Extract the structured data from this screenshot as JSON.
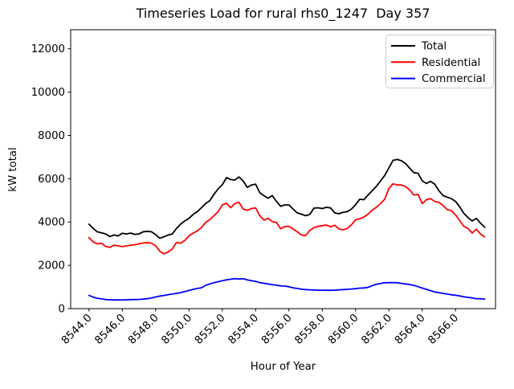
{
  "title": "Timeseries Load for rural rhs0_1247  Day 357",
  "chart_data": {
    "type": "line",
    "title": "Timeseries Load for rural rhs0_1247  Day 357",
    "xlabel": "Hour of Year",
    "ylabel": "kW total",
    "background": "#ffffff",
    "grid": false,
    "legend_position": "upper right",
    "legend": [
      "Total",
      "Residential",
      "Commercial"
    ],
    "xlim": [
      8542.9,
      8568.4
    ],
    "ylim": [
      0,
      12880
    ],
    "x_ticks": [
      8544,
      8546,
      8548,
      8550,
      8552,
      8554,
      8556,
      8558,
      8560,
      8562,
      8564,
      8566
    ],
    "x_tick_labels": [
      "8544.0",
      "8546.0",
      "8548.0",
      "8550.0",
      "8552.0",
      "8554.0",
      "8556.0",
      "8558.0",
      "8560.0",
      "8562.0",
      "8564.0",
      "8566.0"
    ],
    "y_ticks": [
      0,
      2000,
      4000,
      6000,
      8000,
      10000,
      12000
    ],
    "y_tick_labels": [
      "0",
      "2000",
      "4000",
      "6000",
      "8000",
      "10000",
      "12000"
    ],
    "x_start": 8544.0,
    "x_step": 0.25,
    "series": [
      {
        "name": "Total",
        "color": "#000000",
        "values": [
          3900,
          3700,
          3550,
          3500,
          3450,
          3330,
          3400,
          3360,
          3480,
          3450,
          3490,
          3430,
          3450,
          3550,
          3570,
          3550,
          3420,
          3250,
          3320,
          3400,
          3450,
          3700,
          3900,
          4050,
          4170,
          4350,
          4480,
          4660,
          4850,
          4980,
          5280,
          5530,
          5720,
          6050,
          5960,
          5940,
          6080,
          5900,
          5600,
          5710,
          5750,
          5350,
          5220,
          5100,
          5220,
          4950,
          4730,
          4790,
          4790,
          4600,
          4420,
          4360,
          4290,
          4350,
          4640,
          4660,
          4620,
          4680,
          4650,
          4420,
          4380,
          4450,
          4480,
          4600,
          4800,
          5050,
          5030,
          5250,
          5450,
          5650,
          5900,
          6150,
          6500,
          6850,
          6890,
          6830,
          6700,
          6480,
          6280,
          6250,
          5900,
          5780,
          5880,
          5750,
          5450,
          5220,
          5150,
          5080,
          4950,
          4700,
          4400,
          4200,
          4050,
          4170,
          3950,
          3760
        ]
      },
      {
        "name": "Residential",
        "color": "#ff0000",
        "values": [
          3280,
          3080,
          2990,
          3020,
          2870,
          2830,
          2930,
          2900,
          2860,
          2900,
          2930,
          2950,
          2990,
          3030,
          3050,
          3020,
          2900,
          2650,
          2530,
          2620,
          2750,
          3060,
          3020,
          3150,
          3360,
          3490,
          3590,
          3740,
          3980,
          4110,
          4290,
          4480,
          4790,
          4870,
          4660,
          4850,
          4910,
          4600,
          4540,
          4620,
          4650,
          4290,
          4090,
          4170,
          4020,
          3980,
          3690,
          3790,
          3800,
          3680,
          3550,
          3400,
          3370,
          3610,
          3740,
          3800,
          3830,
          3860,
          3780,
          3850,
          3680,
          3640,
          3700,
          3870,
          4100,
          4150,
          4230,
          4360,
          4550,
          4680,
          4860,
          5050,
          5550,
          5770,
          5710,
          5710,
          5640,
          5480,
          5250,
          5280,
          4850,
          5030,
          5080,
          4950,
          4910,
          4760,
          4580,
          4520,
          4330,
          4070,
          3800,
          3700,
          3490,
          3670,
          3440,
          3310
        ]
      },
      {
        "name": "Commercial",
        "color": "#0000ff",
        "values": [
          610,
          530,
          480,
          450,
          420,
          410,
          400,
          400,
          405,
          410,
          415,
          420,
          425,
          440,
          455,
          490,
          540,
          580,
          610,
          645,
          670,
          705,
          740,
          790,
          840,
          890,
          930,
          960,
          1075,
          1140,
          1200,
          1245,
          1290,
          1330,
          1360,
          1385,
          1370,
          1380,
          1330,
          1290,
          1260,
          1200,
          1170,
          1140,
          1110,
          1080,
          1050,
          1040,
          1010,
          960,
          930,
          900,
          880,
          870,
          860,
          850,
          850,
          845,
          845,
          855,
          865,
          880,
          890,
          905,
          920,
          945,
          955,
          985,
          1060,
          1130,
          1160,
          1195,
          1200,
          1200,
          1195,
          1165,
          1140,
          1115,
          1075,
          1015,
          950,
          890,
          830,
          770,
          740,
          705,
          670,
          640,
          615,
          585,
          545,
          520,
          495,
          460,
          455,
          440
        ]
      }
    ]
  }
}
